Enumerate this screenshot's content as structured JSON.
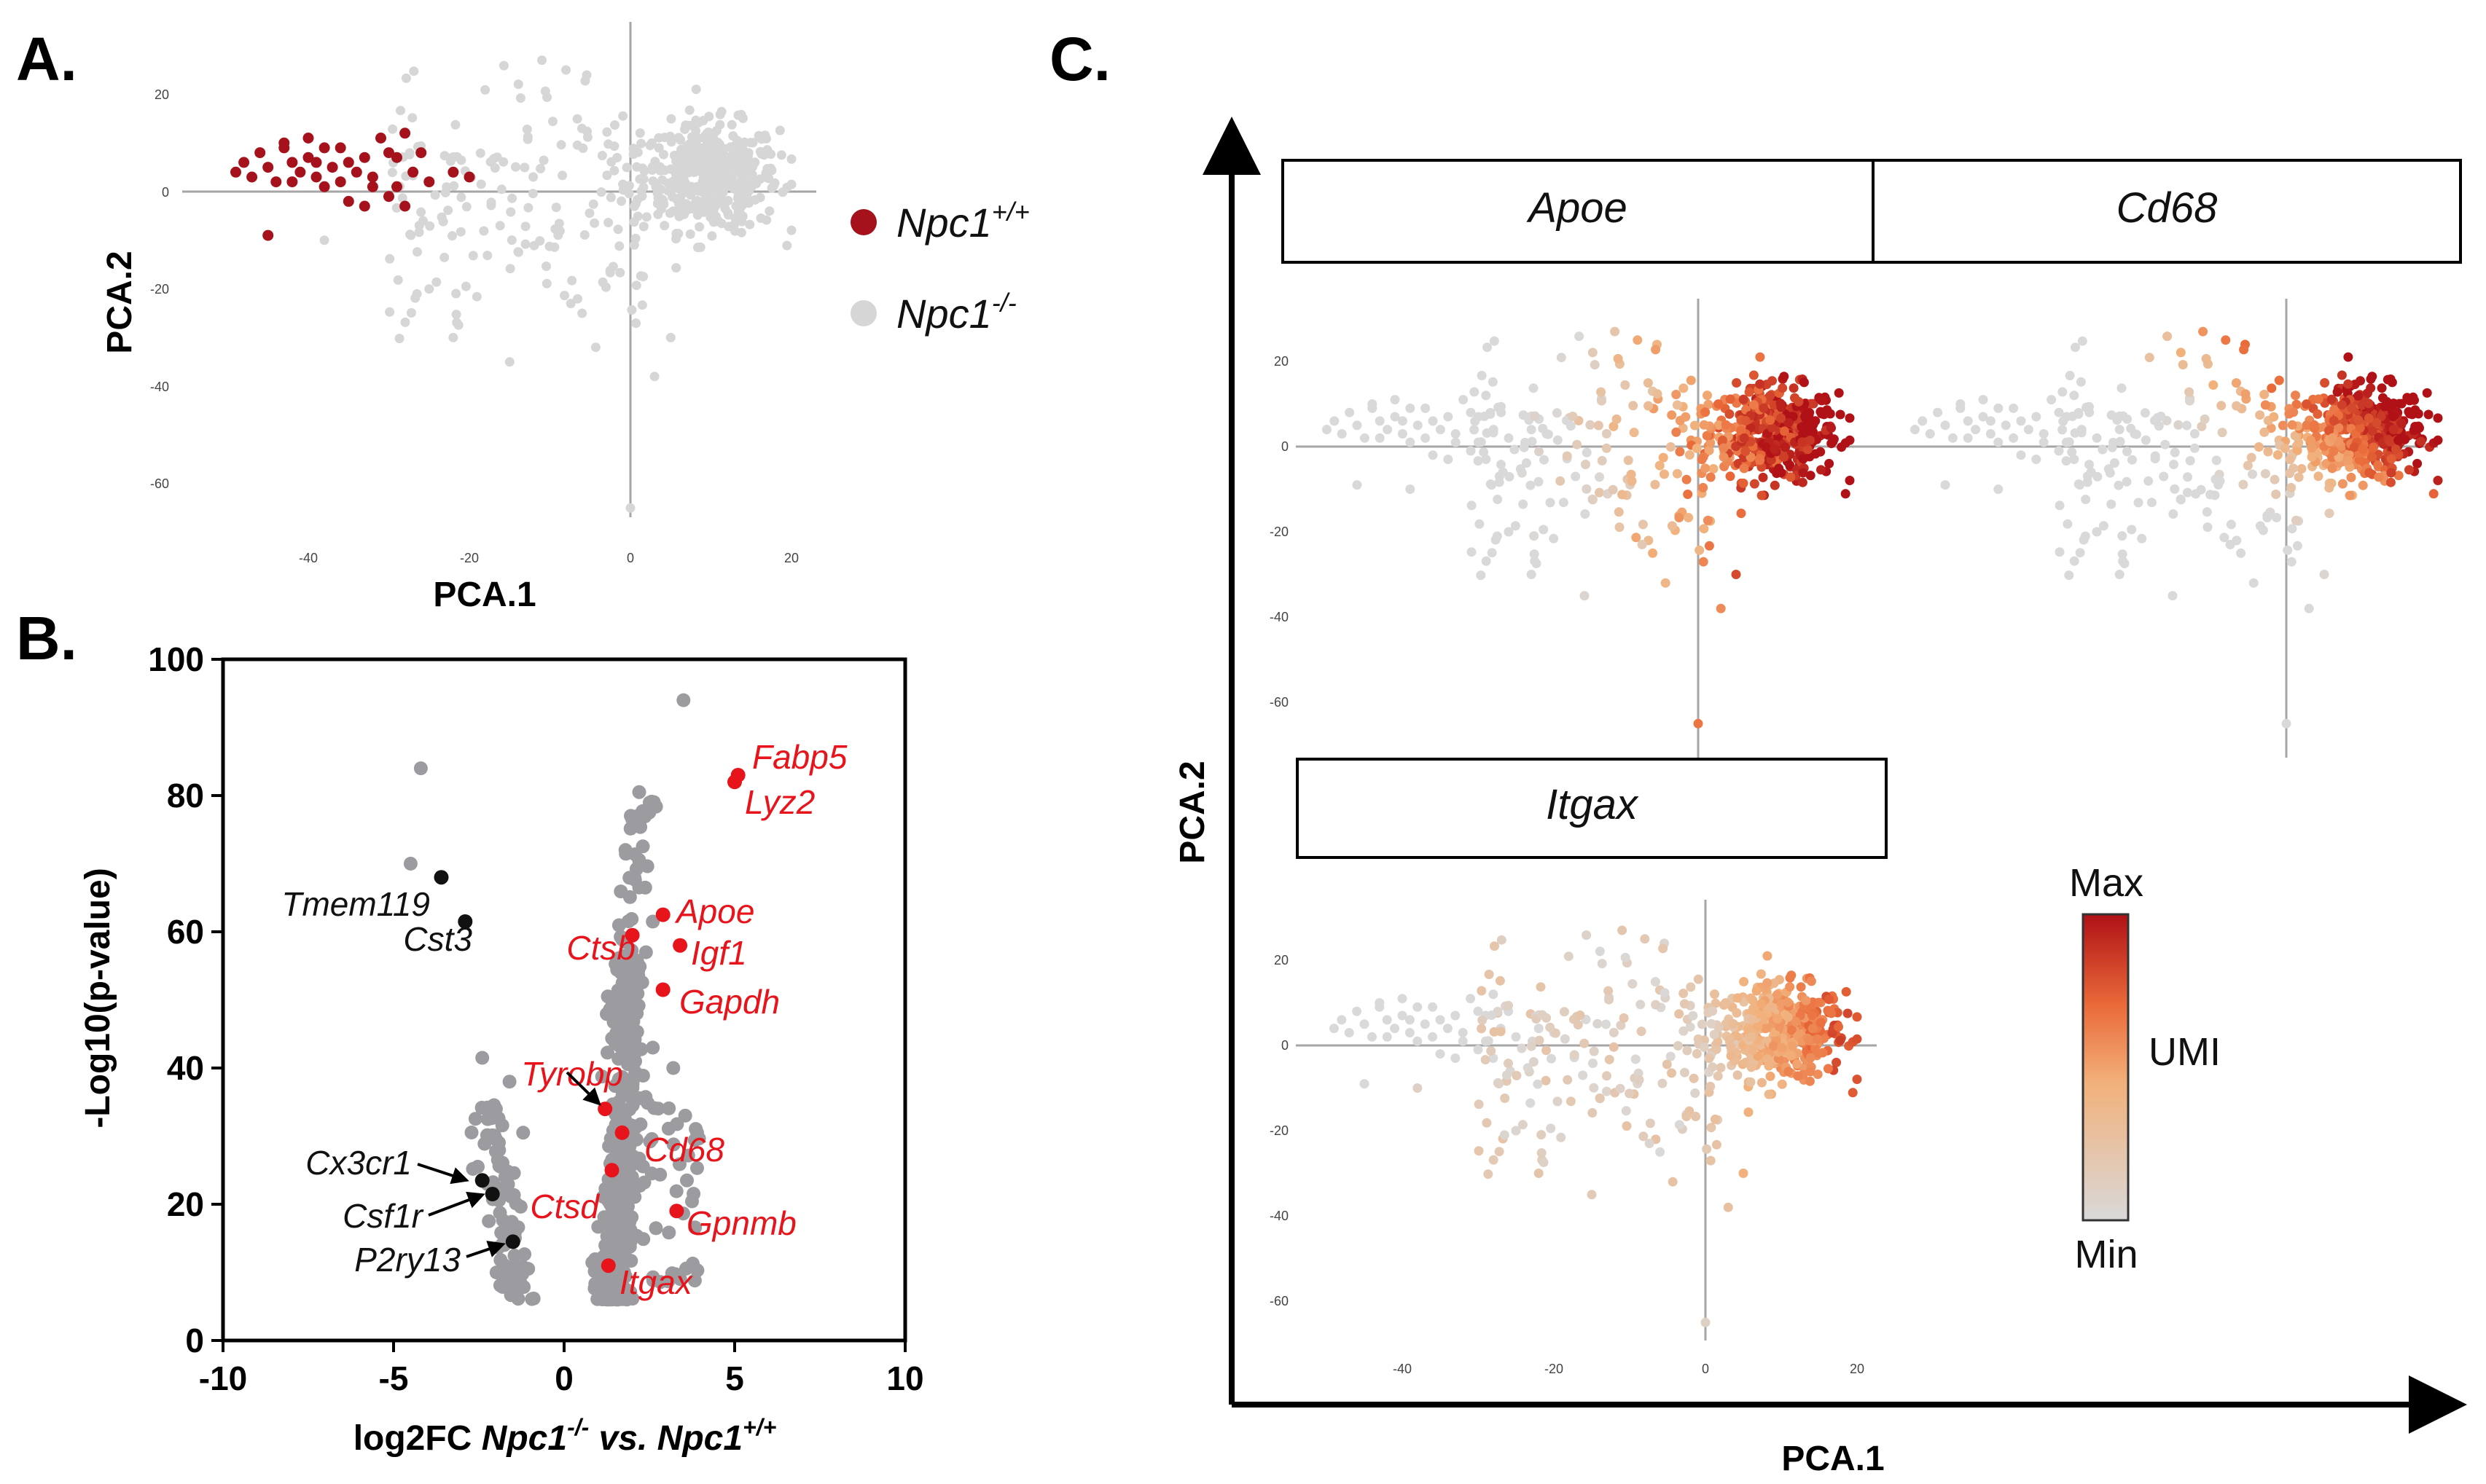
{
  "panels": {
    "A": "A.",
    "B": "B.",
    "C": "C."
  },
  "colors": {
    "wt": "#a5121b",
    "ko": "#d6d6d6",
    "volcano_grey": "#9b9ba0",
    "volcano_red": "#e8141b",
    "volcano_black": "#111111",
    "umi_min": "#d9d9d9",
    "umi_mid": "#f0945a",
    "umi_max": "#b01116"
  },
  "panelA": {
    "x_title": "PCA.1",
    "y_title": "PCA.2",
    "x_ticks": [
      "-40",
      "-20",
      "0",
      "20"
    ],
    "y_ticks": [
      "20",
      "0",
      "-20",
      "-40",
      "-60"
    ],
    "legend": [
      {
        "label": "Npc1",
        "sup": "+/+",
        "color_key": "wt"
      },
      {
        "label": "Npc1",
        "sup": "-/-",
        "color_key": "ko"
      }
    ]
  },
  "panelB": {
    "y_title": "-Log10(p-value)",
    "x_title_parts": [
      "log2FC ",
      "Npc1",
      "-/-",
      " vs. ",
      "Npc1",
      "+/+"
    ],
    "x_ticks": [
      "-10",
      "-5",
      "0",
      "5",
      "10"
    ],
    "y_ticks": [
      "0",
      "20",
      "40",
      "60",
      "80",
      "100"
    ]
  },
  "panelC": {
    "x_title": "PCA.1",
    "y_title": "PCA.2",
    "strips": [
      "Apoe",
      "Cd68",
      "Itgax"
    ],
    "small_x_ticks": [
      "-40",
      "-20",
      "0",
      "20"
    ],
    "small_y_ticks": [
      "20",
      "0",
      "-20",
      "-40",
      "-60"
    ],
    "colorbar": {
      "max": "Max",
      "label": "UMI",
      "min": "Min"
    }
  },
  "chart_data": [
    {
      "type": "scatter",
      "xlabel": "PCA.1",
      "ylabel": "PCA.2",
      "xlim": [
        -57,
        23
      ],
      "ylim": [
        -68,
        28
      ],
      "series": [
        {
          "name": "Npc1+/+",
          "points": [
            [
              -49,
              4
            ],
            [
              -48,
              6
            ],
            [
              -47,
              3
            ],
            [
              -46,
              8
            ],
            [
              -45,
              5
            ],
            [
              -44,
              2
            ],
            [
              -43,
              9
            ],
            [
              -42,
              6
            ],
            [
              -41,
              4
            ],
            [
              -40,
              7
            ],
            [
              -39,
              3
            ],
            [
              -38,
              9
            ],
            [
              -37,
              5
            ],
            [
              -36,
              2
            ],
            [
              -35,
              6
            ],
            [
              -34,
              4
            ],
            [
              -33,
              7
            ],
            [
              -32,
              3
            ],
            [
              -31,
              11
            ],
            [
              -30,
              8
            ],
            [
              -29,
              1
            ],
            [
              -28,
              12
            ],
            [
              -45,
              -9
            ],
            [
              -43,
              10
            ],
            [
              -42,
              2
            ],
            [
              -40,
              11
            ],
            [
              -39,
              6
            ],
            [
              -38,
              1
            ],
            [
              -36,
              9
            ],
            [
              -35,
              -2
            ],
            [
              -33,
              -3
            ],
            [
              -32,
              1
            ],
            [
              -30,
              -1
            ],
            [
              -29,
              7
            ],
            [
              -28,
              -3
            ],
            [
              -27,
              4
            ],
            [
              -26,
              8
            ],
            [
              -25,
              2
            ],
            [
              -22,
              4
            ],
            [
              -20,
              3
            ]
          ]
        },
        {
          "name": "Npc1-/-",
          "points": "generated"
        }
      ]
    },
    {
      "type": "scatter",
      "title": "",
      "xlabel": "log2FC Npc1-/- vs. Npc1+/+",
      "ylabel": "-Log10(p-value)",
      "xlim": [
        -10,
        10
      ],
      "ylim": [
        0,
        100
      ],
      "labeled_up": [
        {
          "gene": "Fabp5",
          "x": 5.1,
          "y": 83
        },
        {
          "gene": "Lyz2",
          "x": 5.0,
          "y": 82
        },
        {
          "gene": "Apoe",
          "x": 2.9,
          "y": 62.5
        },
        {
          "gene": "Ctsb",
          "x": 2.0,
          "y": 59.5
        },
        {
          "gene": "Igf1",
          "x": 3.4,
          "y": 58
        },
        {
          "gene": "Gapdh",
          "x": 2.9,
          "y": 51.5
        },
        {
          "gene": "Tyrobp",
          "x": 1.2,
          "y": 34
        },
        {
          "gene": "Cd68",
          "x": 1.7,
          "y": 30.5
        },
        {
          "gene": "Ctsd",
          "x": 1.4,
          "y": 25
        },
        {
          "gene": "Gpnmb",
          "x": 3.3,
          "y": 19
        },
        {
          "gene": "Itgax",
          "x": 1.3,
          "y": 11
        }
      ],
      "labeled_down": [
        {
          "gene": "Tmem119",
          "x": -3.6,
          "y": 68
        },
        {
          "gene": "Cst3",
          "x": -2.9,
          "y": 61.5
        },
        {
          "gene": "Cx3cr1",
          "x": -2.4,
          "y": 23.5
        },
        {
          "gene": "Csf1r",
          "x": -2.1,
          "y": 21.5
        },
        {
          "gene": "P2ry13",
          "x": -1.5,
          "y": 14.5
        }
      ]
    }
  ]
}
